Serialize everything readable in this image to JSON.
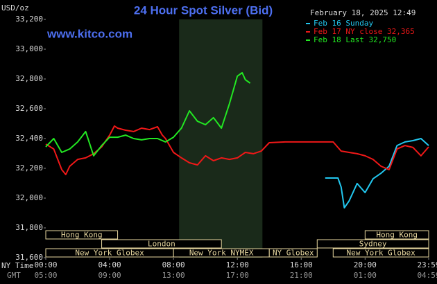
{
  "chart_data": {
    "type": "line",
    "title": "24 Hour Spot Silver (Bid)",
    "site": "www.kitco.com",
    "y_label": "USD/oz",
    "timestamp": "February 18, 2025 12:49",
    "x_row_label": "NY Time",
    "x2_row_label": "GMT",
    "xlim": [
      0,
      23.983
    ],
    "xticks": [
      {
        "value": 0,
        "label": "00:00"
      },
      {
        "value": 4,
        "label": "04:00"
      },
      {
        "value": 8,
        "label": "08:00"
      },
      {
        "value": 12,
        "label": "12:00"
      },
      {
        "value": 16,
        "label": "16:00"
      },
      {
        "value": 20,
        "label": "20:00"
      },
      {
        "value": 23.983,
        "label": "23:59"
      }
    ],
    "x2ticks": [
      {
        "value": 0,
        "label": "05:00"
      },
      {
        "value": 4,
        "label": "09:00"
      },
      {
        "value": 8,
        "label": "13:00"
      },
      {
        "value": 12,
        "label": "17:00"
      },
      {
        "value": 16,
        "label": "21:00"
      },
      {
        "value": 20,
        "label": "01:00"
      },
      {
        "value": 23.983,
        "label": "04:59"
      }
    ],
    "ylim": [
      31600,
      33200
    ],
    "yticks": [
      {
        "value": 31600,
        "label": "31,600"
      },
      {
        "value": 31800,
        "label": "31,800"
      },
      {
        "value": 32000,
        "label": "32,000"
      },
      {
        "value": 32200,
        "label": "32,200"
      },
      {
        "value": 32400,
        "label": "32,400"
      },
      {
        "value": 32600,
        "label": "32,600"
      },
      {
        "value": 32800,
        "label": "32,800"
      },
      {
        "value": 33000,
        "label": "33,000"
      },
      {
        "value": 33200,
        "label": "33,200"
      }
    ],
    "grid": false,
    "highlight_x": [
      8.35,
      13.57
    ],
    "highlight_color": "#1a2a1a",
    "sessions": [
      {
        "name": "Hong Kong",
        "start": 0,
        "end": 4.5,
        "row": 0
      },
      {
        "name": "London",
        "start": 3.5,
        "end": 11,
        "row": 1
      },
      {
        "name": "New York Globex",
        "start": 0,
        "end": 8,
        "row": 2
      },
      {
        "name": "New York NYMEX",
        "start": 8,
        "end": 14,
        "row": 2
      },
      {
        "name": "NY Globex",
        "start": 14,
        "end": 17,
        "row": 2
      },
      {
        "name": "Hong Kong",
        "start": 20,
        "end": 23.983,
        "row": 0
      },
      {
        "name": "Sydney",
        "start": 17,
        "end": 23.983,
        "row": 1
      },
      {
        "name": "New York Globex",
        "start": 18,
        "end": 23.983,
        "row": 2
      }
    ],
    "series": [
      {
        "name": "Feb 16 Sunday",
        "color": "#22c8f0",
        "x": [
          17.5,
          18.3,
          18.5,
          18.7,
          19,
          19.5,
          20,
          20.5,
          21,
          21.5,
          22,
          22.5,
          23,
          23.5,
          23.983
        ],
        "values": [
          32135,
          32135,
          32074,
          31935,
          31981,
          32098,
          32037,
          32130,
          32167,
          32214,
          32353,
          32377,
          32386,
          32400,
          32353
        ]
      },
      {
        "name": "Feb 17 NY close 32,365",
        "color": "#f01818",
        "x": [
          0,
          0.5,
          1,
          1.25,
          1.5,
          2,
          2.5,
          3,
          3.5,
          4,
          4.3,
          4.5,
          5,
          5.5,
          6,
          6.5,
          7,
          7.3,
          7.5,
          8,
          8.5,
          9,
          9.5,
          10,
          10.5,
          11,
          11.5,
          12,
          12.5,
          13,
          13.5,
          14,
          15,
          16,
          17,
          18,
          18.5,
          19,
          19.5,
          20,
          20.5,
          21,
          21.5,
          22,
          22.5,
          23,
          23.5,
          23.983
        ],
        "values": [
          32363,
          32330,
          32191,
          32158,
          32214,
          32260,
          32270,
          32298,
          32344,
          32423,
          32484,
          32470,
          32456,
          32447,
          32470,
          32460,
          32479,
          32423,
          32400,
          32307,
          32270,
          32237,
          32223,
          32284,
          32251,
          32270,
          32260,
          32270,
          32307,
          32298,
          32316,
          32372,
          32377,
          32377,
          32377,
          32377,
          32316,
          32307,
          32298,
          32284,
          32260,
          32214,
          32191,
          32330,
          32353,
          32340,
          32284,
          32344
        ]
      },
      {
        "name": "Feb 18 Last 32,750",
        "color": "#22e822",
        "x": [
          0,
          0.5,
          1,
          1.5,
          2,
          2.5,
          3,
          3.5,
          4,
          4.5,
          5,
          5.5,
          6,
          6.5,
          7,
          7.5,
          8,
          8.5,
          9,
          9.5,
          10,
          10.5,
          11,
          11.5,
          12,
          12.3,
          12.5,
          12.8
        ],
        "values": [
          32344,
          32400,
          32307,
          32330,
          32377,
          32447,
          32284,
          32353,
          32409,
          32409,
          32423,
          32400,
          32391,
          32400,
          32400,
          32377,
          32409,
          32470,
          32586,
          32516,
          32493,
          32540,
          32470,
          32633,
          32819,
          32842,
          32795,
          32772
        ]
      }
    ]
  }
}
